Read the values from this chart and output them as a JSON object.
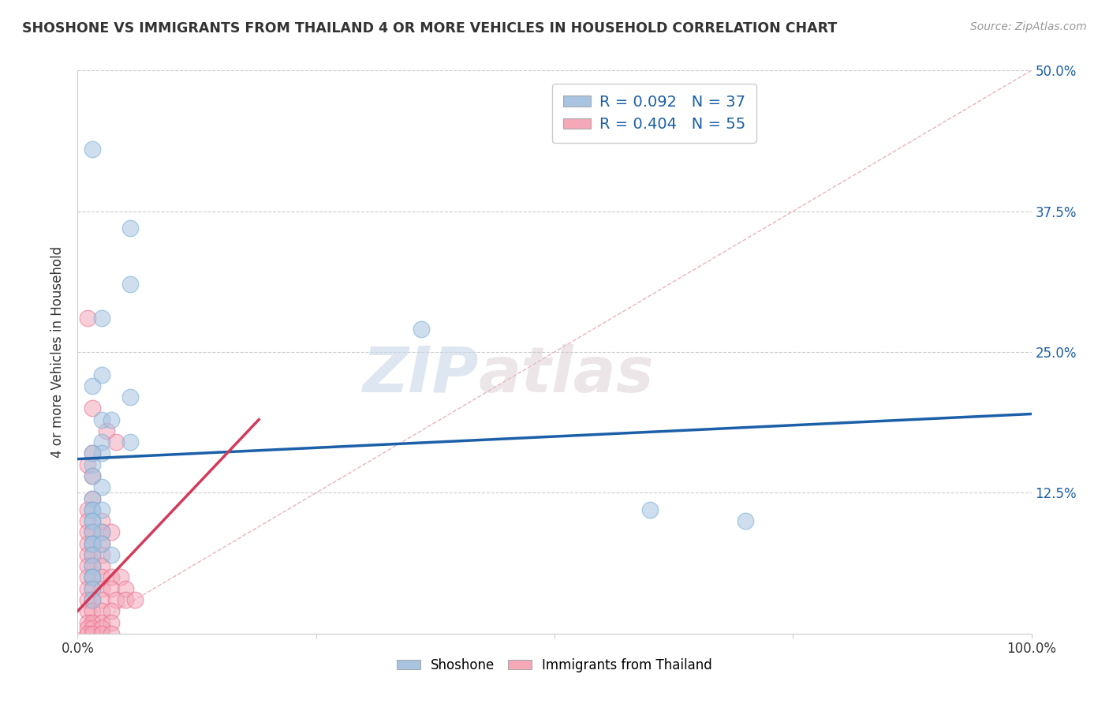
{
  "title": "SHOSHONE VS IMMIGRANTS FROM THAILAND 4 OR MORE VEHICLES IN HOUSEHOLD CORRELATION CHART",
  "source": "Source: ZipAtlas.com",
  "ylabel": "4 or more Vehicles in Household",
  "xlim": [
    0,
    100
  ],
  "ylim": [
    0,
    50
  ],
  "legend_labels": [
    "Shoshone",
    "Immigrants from Thailand"
  ],
  "legend_r_n": [
    {
      "R": "0.092",
      "N": "37"
    },
    {
      "R": "0.404",
      "N": "55"
    }
  ],
  "shoshone_color": "#a8c4e0",
  "shoshone_edge_color": "#7aafd4",
  "thailand_color": "#f4a8b8",
  "thailand_edge_color": "#e87090",
  "shoshone_line_color": "#1a5fa8",
  "thailand_line_color": "#d43a5a",
  "diagonal_color": "#e8a0a8",
  "watermark_zip": "ZIP",
  "watermark_atlas": "atlas",
  "shoshone_points": [
    [
      1.5,
      43
    ],
    [
      5.5,
      36
    ],
    [
      5.5,
      31
    ],
    [
      2.5,
      28
    ],
    [
      2.5,
      23
    ],
    [
      1.5,
      22
    ],
    [
      36,
      27
    ],
    [
      2.5,
      19
    ],
    [
      5.5,
      21
    ],
    [
      3.5,
      19
    ],
    [
      2.5,
      17
    ],
    [
      5.5,
      17
    ],
    [
      2.5,
      16
    ],
    [
      1.5,
      16
    ],
    [
      1.5,
      15
    ],
    [
      1.5,
      14
    ],
    [
      2.5,
      13
    ],
    [
      1.5,
      12
    ],
    [
      1.5,
      11
    ],
    [
      1.5,
      11
    ],
    [
      2.5,
      11
    ],
    [
      1.5,
      10
    ],
    [
      1.5,
      10
    ],
    [
      2.5,
      9
    ],
    [
      1.5,
      9
    ],
    [
      1.5,
      8
    ],
    [
      1.5,
      8
    ],
    [
      2.5,
      8
    ],
    [
      1.5,
      7
    ],
    [
      3.5,
      7
    ],
    [
      1.5,
      6
    ],
    [
      1.5,
      5
    ],
    [
      1.5,
      5
    ],
    [
      1.5,
      4
    ],
    [
      1.5,
      3
    ],
    [
      60,
      11
    ],
    [
      70,
      10
    ]
  ],
  "thailand_points": [
    [
      1,
      28
    ],
    [
      1.5,
      20
    ],
    [
      3,
      18
    ],
    [
      4,
      17
    ],
    [
      1.5,
      16
    ],
    [
      1,
      15
    ],
    [
      1.5,
      14
    ],
    [
      1.5,
      12
    ],
    [
      1,
      11
    ],
    [
      1,
      10
    ],
    [
      2.5,
      10
    ],
    [
      1,
      9
    ],
    [
      1.5,
      9
    ],
    [
      2.5,
      9
    ],
    [
      3.5,
      9
    ],
    [
      1,
      8
    ],
    [
      1.5,
      8
    ],
    [
      2.5,
      8
    ],
    [
      1,
      7
    ],
    [
      1.5,
      7
    ],
    [
      2.5,
      7
    ],
    [
      1,
      6
    ],
    [
      1.5,
      6
    ],
    [
      2.5,
      6
    ],
    [
      1,
      5
    ],
    [
      1.5,
      5
    ],
    [
      2.5,
      5
    ],
    [
      3.5,
      5
    ],
    [
      4.5,
      5
    ],
    [
      1,
      4
    ],
    [
      1.5,
      4
    ],
    [
      2.5,
      4
    ],
    [
      3.5,
      4
    ],
    [
      5,
      4
    ],
    [
      1,
      3
    ],
    [
      1.5,
      3
    ],
    [
      2.5,
      3
    ],
    [
      4,
      3
    ],
    [
      5,
      3
    ],
    [
      6,
      3
    ],
    [
      1,
      2
    ],
    [
      1.5,
      2
    ],
    [
      2.5,
      2
    ],
    [
      3.5,
      2
    ],
    [
      1,
      1
    ],
    [
      1.5,
      1
    ],
    [
      2.5,
      1
    ],
    [
      3.5,
      1
    ],
    [
      1,
      0.5
    ],
    [
      1.5,
      0.5
    ],
    [
      2.5,
      0.5
    ],
    [
      1,
      0
    ],
    [
      1.5,
      0
    ],
    [
      2.5,
      0
    ],
    [
      3.5,
      0
    ]
  ],
  "shoshone_regression": [
    0,
    100,
    15.5,
    19.5
  ],
  "thailand_regression": [
    0,
    19,
    2.0,
    19.0
  ],
  "y_grid_ticks": [
    0,
    12.5,
    25,
    37.5,
    50
  ],
  "x_ticks": [
    0,
    25,
    50,
    75,
    100
  ],
  "background_color": "#ffffff"
}
